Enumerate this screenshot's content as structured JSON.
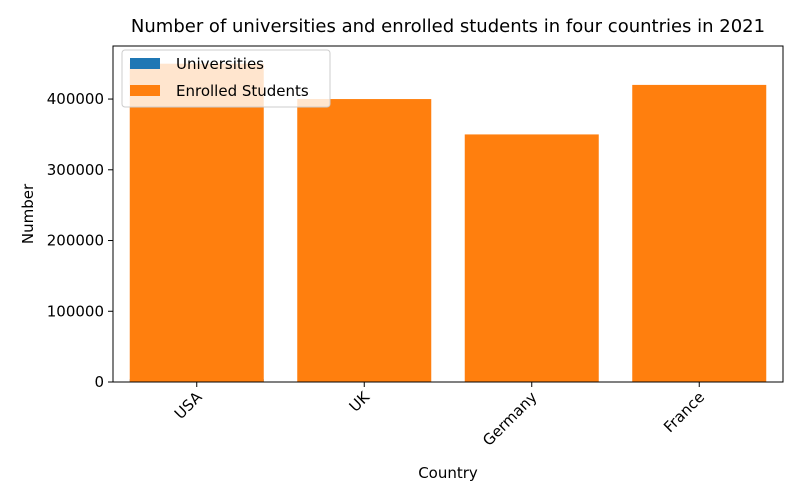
{
  "chart_data": {
    "type": "bar",
    "title": "Number of universities and enrolled students in four countries in 2021",
    "xlabel": "Country",
    "ylabel": "Number",
    "categories": [
      "USA",
      "UK",
      "Germany",
      "France"
    ],
    "series": [
      {
        "name": "Universities",
        "values": [
          4000,
          300,
          400,
          300
        ],
        "color": "#1f77b4"
      },
      {
        "name": "Enrolled Students",
        "values": [
          450000,
          400000,
          350000,
          420000
        ],
        "color": "#ff7f0e"
      }
    ],
    "ylim": [
      0,
      475000
    ],
    "yticks": [
      0,
      100000,
      200000,
      300000,
      400000
    ],
    "ytick_labels": [
      "0",
      "100000",
      "200000",
      "300000",
      "400000"
    ],
    "grid": false,
    "legend_position": "top-left",
    "stacked": false,
    "overlapping_bars": true
  }
}
